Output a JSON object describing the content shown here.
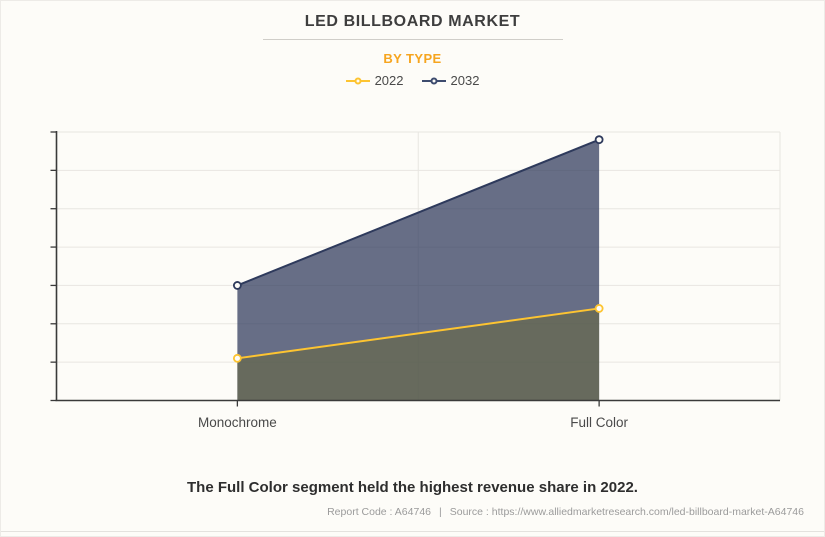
{
  "header": {
    "title": "LED BILLBOARD MARKET",
    "subtitle": "BY TYPE"
  },
  "legend": {
    "items": [
      {
        "label": "2022",
        "color": "#fdc431"
      },
      {
        "label": "2032",
        "color": "#3d4b6e"
      }
    ]
  },
  "chart_data": {
    "type": "area",
    "categories": [
      "Monochrome",
      "Full Color"
    ],
    "series": [
      {
        "name": "2022",
        "values": [
          1.1,
          2.4
        ],
        "line_color": "#fdc431",
        "fill_color": "#68673c8c",
        "marker": "hollow-circle"
      },
      {
        "name": "2032",
        "values": [
          3.0,
          6.8
        ],
        "line_color": "#2e3a5c",
        "fill_color": "#2e3a5cba",
        "marker": "hollow-circle"
      }
    ],
    "ylim": [
      0,
      7
    ],
    "y_tick_count": 8,
    "y_axis_labels_shown": false,
    "grid": true,
    "legend_position": "top",
    "note": "Y axis has unlabeled ticks; values estimated in gridline units (7 equal intervals from baseline to top gridline)."
  },
  "annotation": {
    "text": "The Full Color segment held the highest revenue share in 2022."
  },
  "footer": {
    "report_code": "Report Code : A64746",
    "separator": "|",
    "source": "Source : https://www.alliedmarketresearch.com/led-billboard-market-A64746"
  },
  "colors": {
    "accent_orange": "#f6a51f",
    "background": "#fdfcf8",
    "axis": "#3a3a3a",
    "gridline": "#e8e6e1",
    "text_dark": "#3e3e3e",
    "text_muted": "#9b9b9b",
    "label_gray": "#4a4a4a"
  }
}
